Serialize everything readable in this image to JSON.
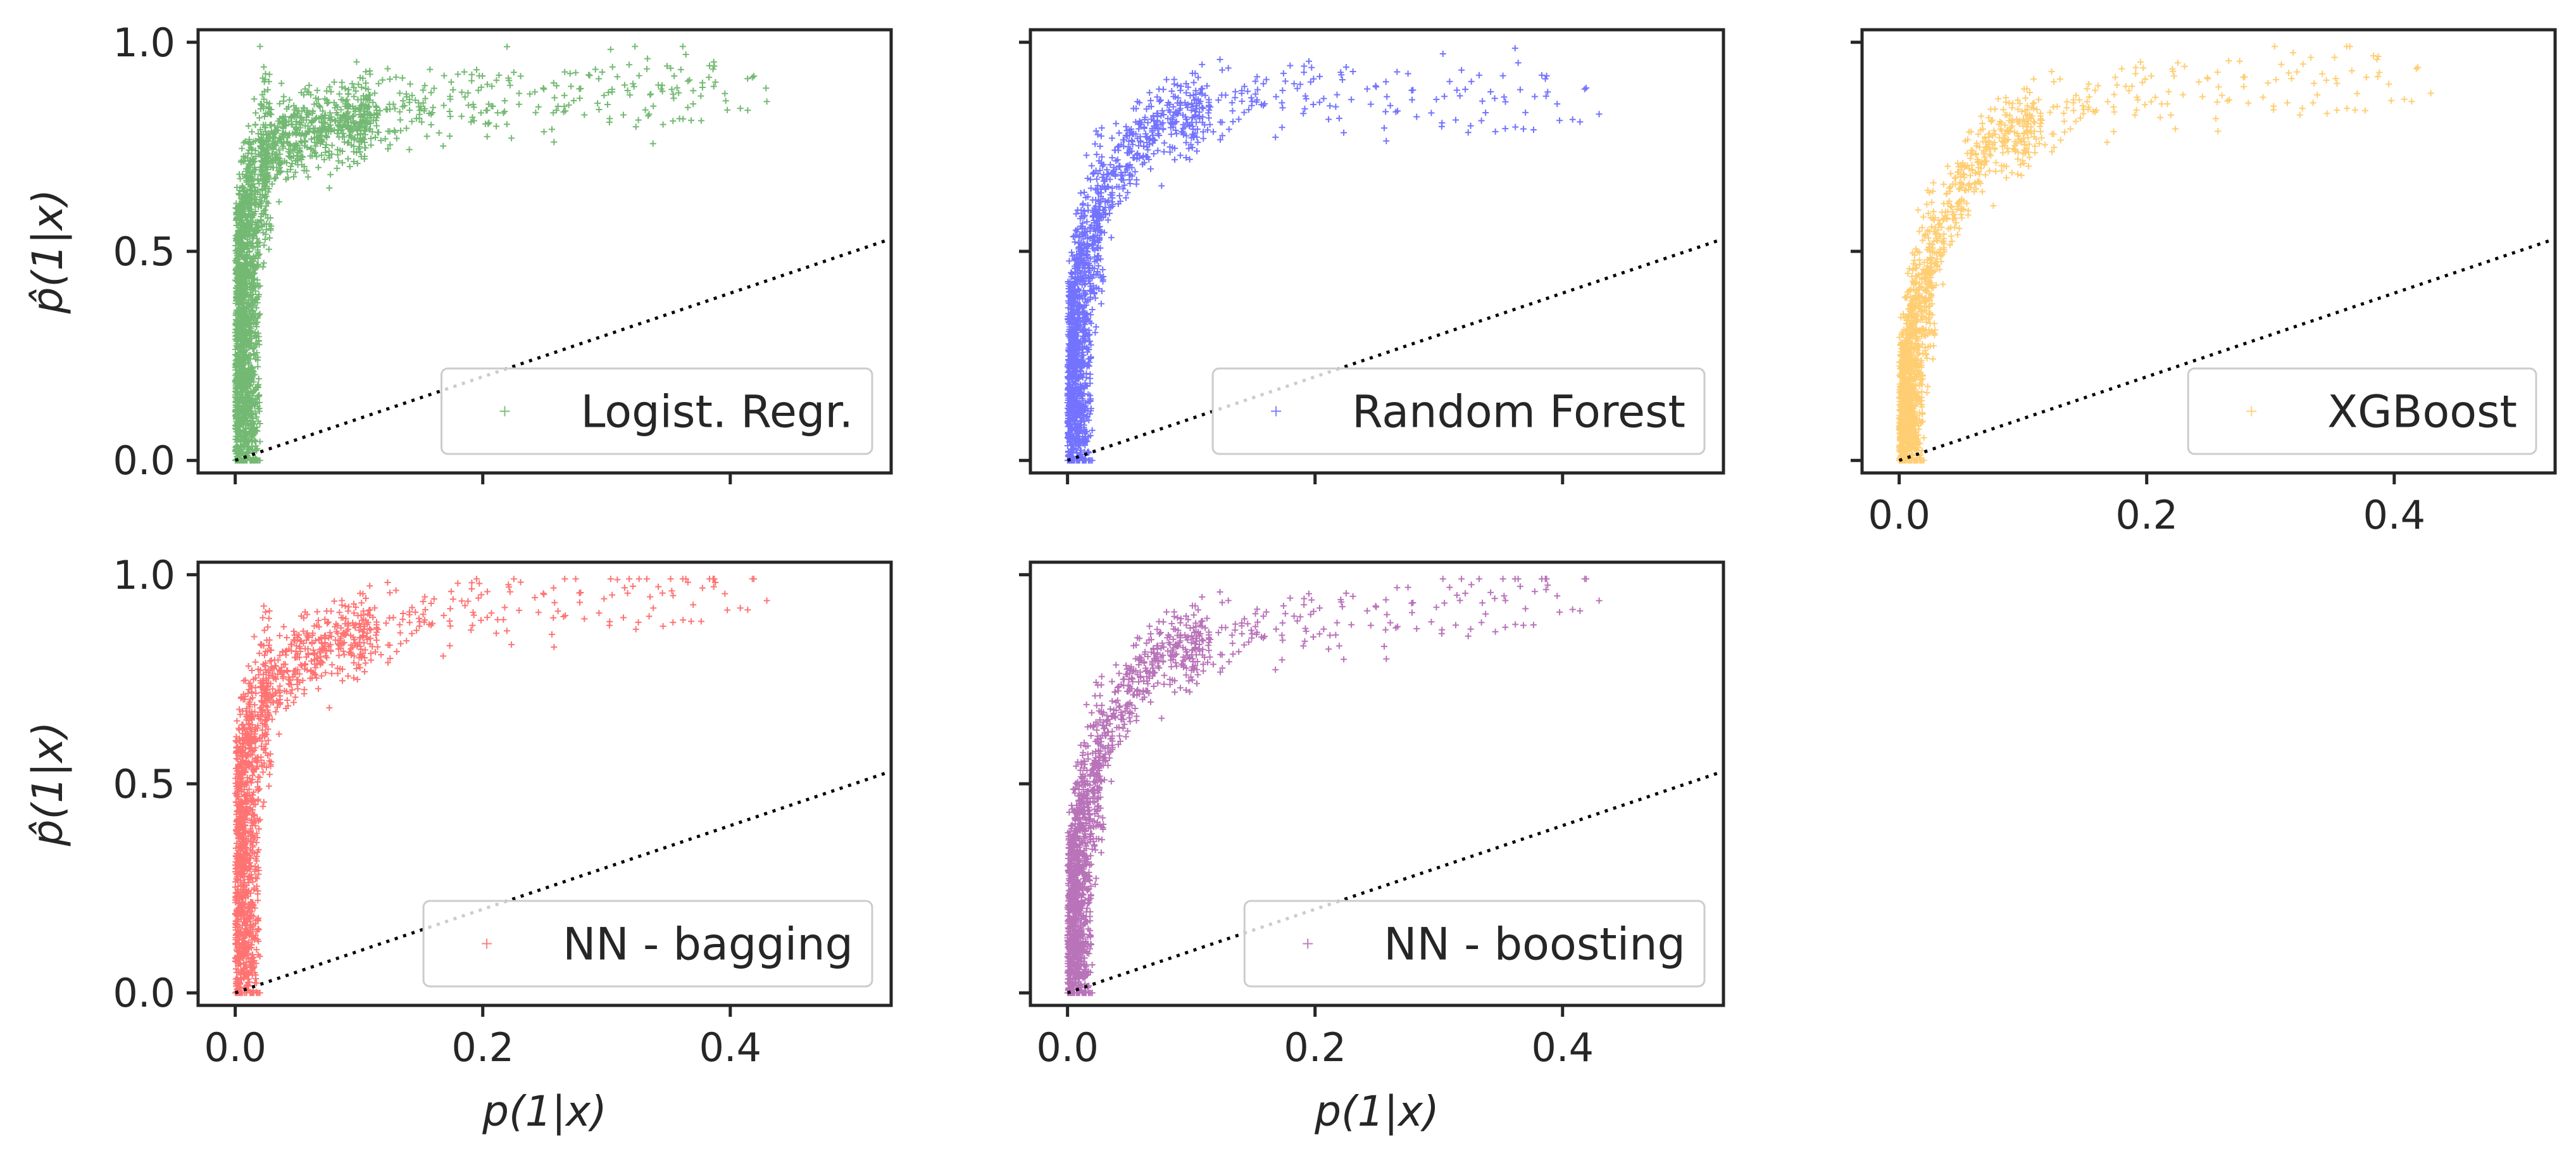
{
  "chart_data": [
    {
      "type": "scatter",
      "name": "Logist. Regr.",
      "color": "#008000",
      "legend": {
        "label": "Logist. Regr.",
        "position": "lower right"
      },
      "xlabel": "",
      "ylabel": "p̂(1|x)",
      "xlim": [
        -0.03,
        0.53
      ],
      "ylim": [
        -0.03,
        1.03
      ],
      "xticks": [
        0.0,
        0.2,
        0.4
      ],
      "yticks": [
        0.0,
        0.5,
        1.0
      ],
      "xtick_labels": [
        "",
        "",
        ""
      ],
      "ytick_labels": [
        "0.0",
        "0.5",
        "1.0"
      ],
      "reference_line": "y = x (dotted)",
      "marker": "+",
      "curve": [
        [
          0.0,
          0.0
        ],
        [
          0.005,
          0.3
        ],
        [
          0.01,
          0.55
        ],
        [
          0.02,
          0.72
        ],
        [
          0.05,
          0.78
        ],
        [
          0.1,
          0.82
        ],
        [
          0.2,
          0.86
        ],
        [
          0.3,
          0.88
        ],
        [
          0.43,
          0.9
        ]
      ]
    },
    {
      "type": "scatter",
      "name": "Random Forest",
      "color": "#0000ff",
      "legend": {
        "label": "Random Forest",
        "position": "lower right"
      },
      "xlabel": "",
      "ylabel": "",
      "xlim": [
        -0.03,
        0.53
      ],
      "ylim": [
        -0.03,
        1.03
      ],
      "xticks": [
        0.0,
        0.2,
        0.4
      ],
      "yticks": [
        0.0,
        0.5,
        1.0
      ],
      "xtick_labels": [
        "",
        "",
        ""
      ],
      "ytick_labels": [
        "",
        "",
        ""
      ],
      "reference_line": "y = x (dotted)",
      "marker": "+",
      "curve": [
        [
          0.0,
          0.0
        ],
        [
          0.01,
          0.35
        ],
        [
          0.02,
          0.55
        ],
        [
          0.04,
          0.7
        ],
        [
          0.07,
          0.8
        ],
        [
          0.12,
          0.85
        ],
        [
          0.2,
          0.88
        ],
        [
          0.3,
          0.87
        ],
        [
          0.43,
          0.87
        ]
      ]
    },
    {
      "type": "scatter",
      "name": "XGBoost",
      "color": "#ffa500",
      "legend": {
        "label": "XGBoost",
        "position": "lower right"
      },
      "xlabel": "",
      "ylabel": "",
      "xlim": [
        -0.03,
        0.53
      ],
      "ylim": [
        -0.03,
        1.03
      ],
      "xticks": [
        0.0,
        0.2,
        0.4
      ],
      "yticks": [
        0.0,
        0.5,
        1.0
      ],
      "xtick_labels": [
        "0.0",
        "0.2",
        "0.4"
      ],
      "ytick_labels": [
        "",
        "",
        ""
      ],
      "reference_line": "y = x (dotted)",
      "marker": "+",
      "curve": [
        [
          0.0,
          0.0
        ],
        [
          0.01,
          0.2
        ],
        [
          0.02,
          0.4
        ],
        [
          0.04,
          0.6
        ],
        [
          0.07,
          0.75
        ],
        [
          0.12,
          0.82
        ],
        [
          0.2,
          0.88
        ],
        [
          0.3,
          0.91
        ],
        [
          0.43,
          0.92
        ]
      ]
    },
    {
      "type": "scatter",
      "name": "NN - bagging",
      "color": "#ff0000",
      "legend": {
        "label": "NN - bagging",
        "position": "lower right"
      },
      "xlabel": "p(1|x)",
      "ylabel": "p̂(1|x)",
      "xlim": [
        -0.03,
        0.53
      ],
      "ylim": [
        -0.03,
        1.03
      ],
      "xticks": [
        0.0,
        0.2,
        0.4
      ],
      "yticks": [
        0.0,
        0.5,
        1.0
      ],
      "xtick_labels": [
        "0.0",
        "0.2",
        "0.4"
      ],
      "ytick_labels": [
        "0.0",
        "0.5",
        "1.0"
      ],
      "reference_line": "y = x (dotted)",
      "marker": "+",
      "curve": [
        [
          0.0,
          0.0
        ],
        [
          0.005,
          0.3
        ],
        [
          0.01,
          0.55
        ],
        [
          0.02,
          0.7
        ],
        [
          0.05,
          0.8
        ],
        [
          0.1,
          0.86
        ],
        [
          0.2,
          0.92
        ],
        [
          0.3,
          0.95
        ],
        [
          0.43,
          0.98
        ]
      ]
    },
    {
      "type": "scatter",
      "name": "NN - boosting",
      "color": "#800080",
      "legend": {
        "label": "NN - boosting",
        "position": "lower right"
      },
      "xlabel": "p(1|x)",
      "ylabel": "",
      "xlim": [
        -0.03,
        0.53
      ],
      "ylim": [
        -0.03,
        1.03
      ],
      "xticks": [
        0.0,
        0.2,
        0.4
      ],
      "yticks": [
        0.0,
        0.5,
        1.0
      ],
      "xtick_labels": [
        "0.0",
        "0.2",
        "0.4"
      ],
      "ytick_labels": [
        "",
        "",
        ""
      ],
      "reference_line": "y = x (dotted)",
      "marker": "+",
      "curve": [
        [
          0.0,
          0.0
        ],
        [
          0.01,
          0.3
        ],
        [
          0.02,
          0.5
        ],
        [
          0.04,
          0.68
        ],
        [
          0.07,
          0.8
        ],
        [
          0.12,
          0.85
        ],
        [
          0.2,
          0.88
        ],
        [
          0.3,
          0.93
        ],
        [
          0.43,
          0.98
        ]
      ]
    }
  ]
}
